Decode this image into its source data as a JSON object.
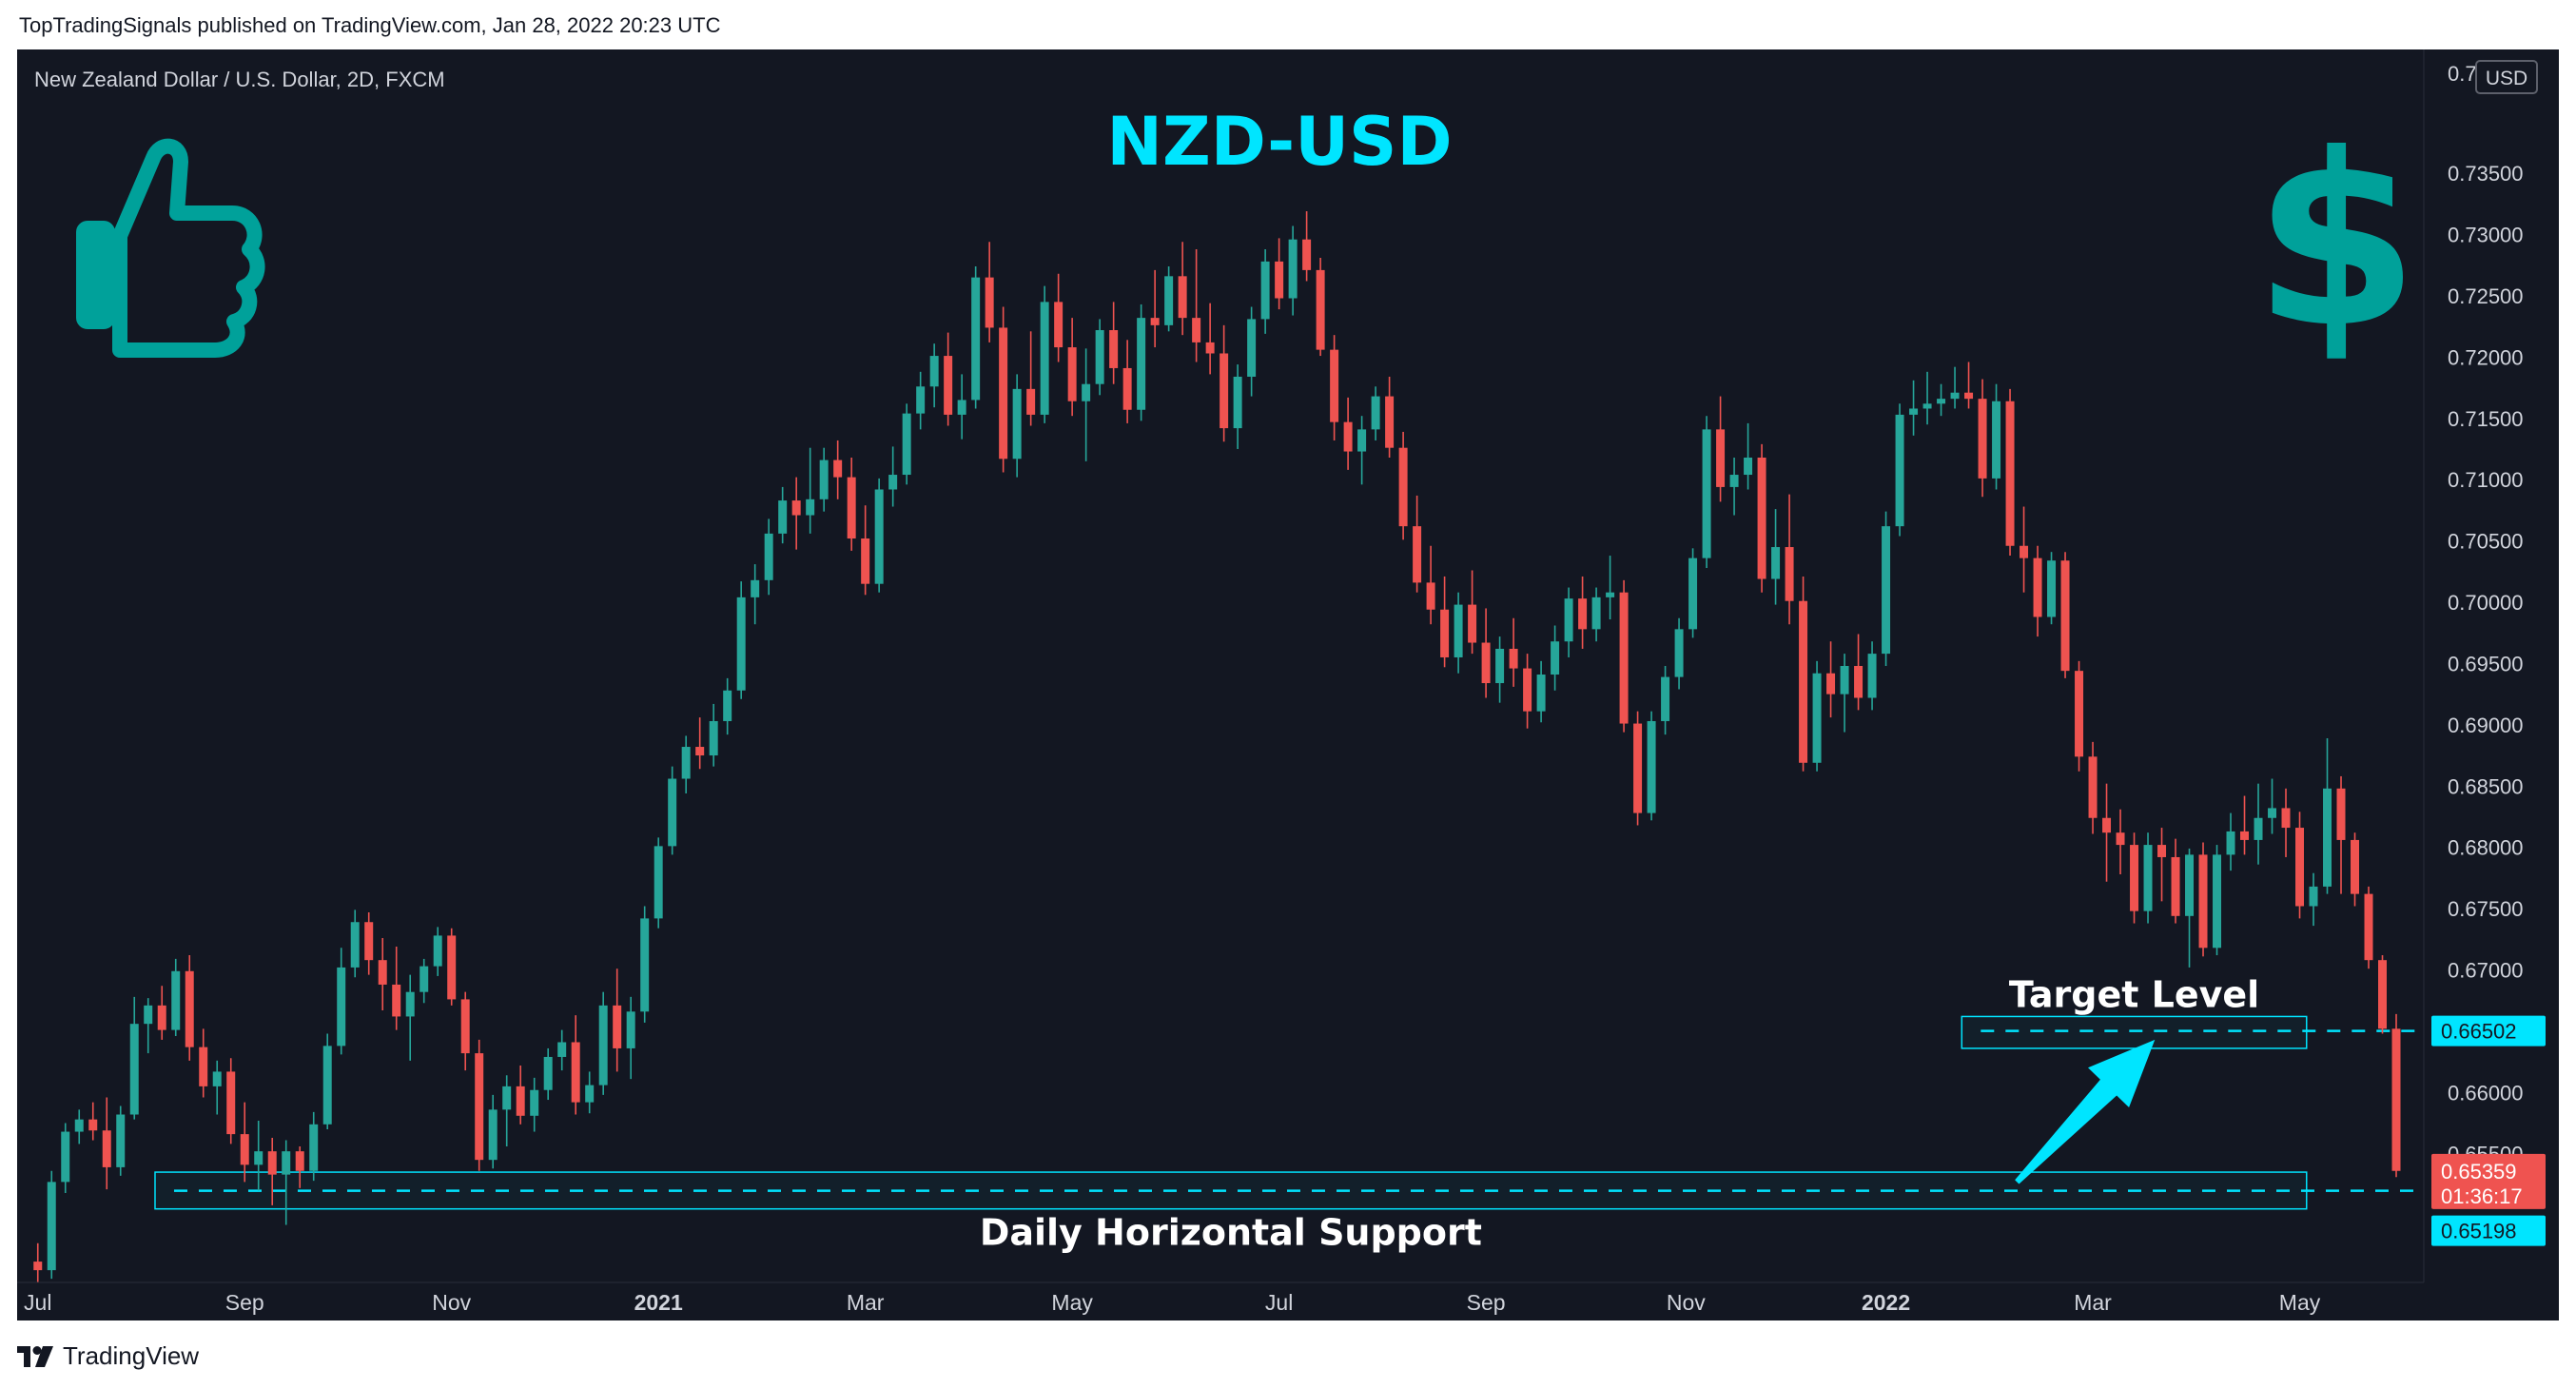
{
  "header": {
    "publish_text": "TopTradingSignals published on TradingView.com, Jan 28, 2022 20:23 UTC"
  },
  "footer": {
    "brand": "TradingView",
    "logo_icon": "tradingview-logo-icon"
  },
  "colors": {
    "background": "#131722",
    "up": "#26a69a",
    "down": "#ef5350",
    "accent": "#00e5ff",
    "icon_teal": "#00a19a",
    "text": "#d1d4dc"
  },
  "chart_data": {
    "type": "candlestick",
    "symbol_label": "New Zealand Dollar / U.S. Dollar, 2D, FXCM",
    "title": "NZD-USD",
    "currency_button": "USD",
    "y_top_label": "0.7",
    "ylim": [
      0.6445,
      0.7451
    ],
    "xlim": [
      -1.5,
      173.0
    ],
    "y_ticks": [
      0.735,
      0.73,
      0.725,
      0.72,
      0.715,
      0.71,
      0.705,
      0.7,
      0.695,
      0.69,
      0.685,
      0.68,
      0.675,
      0.67,
      0.66,
      0.655
    ],
    "x_tick_labels": [
      {
        "label": "Jul",
        "x": 0
      },
      {
        "label": "Sep",
        "x": 15
      },
      {
        "label": "Nov",
        "x": 30
      },
      {
        "label": "2021",
        "x": 45
      },
      {
        "label": "Mar",
        "x": 60
      },
      {
        "label": "May",
        "x": 75
      },
      {
        "label": "Jul",
        "x": 90
      },
      {
        "label": "Sep",
        "x": 105
      },
      {
        "label": "Nov",
        "x": 119.5
      },
      {
        "label": "2022",
        "x": 134
      },
      {
        "label": "Mar",
        "x": 149
      },
      {
        "label": "May",
        "x": 164
      }
    ],
    "levels": [
      {
        "name": "target-level",
        "label": "Target Level",
        "value": 0.66502,
        "price_label": "0.66502",
        "zone": [
          0.6636,
          0.6662
        ],
        "x_start": 139.5,
        "x_end": 164.5
      },
      {
        "name": "support-level",
        "label": "Daily Horizontal Support",
        "value": 0.65198,
        "price_label": "0.65198",
        "zone": [
          0.6505,
          0.6535
        ],
        "x_start": 8.5,
        "x_end": 164.5
      }
    ],
    "last_price": {
      "value": 0.65359,
      "label": "0.65359",
      "countdown": "01:36:17"
    },
    "arrow": {
      "from": [
        143.5,
        0.6527
      ],
      "to": [
        153.5,
        0.6643
      ]
    },
    "candles": [
      {
        "o": 0.6462,
        "h": 0.6477,
        "l": 0.6445,
        "c": 0.6455
      },
      {
        "o": 0.6455,
        "h": 0.6536,
        "l": 0.6448,
        "c": 0.6527
      },
      {
        "o": 0.6527,
        "h": 0.6575,
        "l": 0.6518,
        "c": 0.6568
      },
      {
        "o": 0.6568,
        "h": 0.6586,
        "l": 0.6558,
        "c": 0.6578
      },
      {
        "o": 0.6578,
        "h": 0.6592,
        "l": 0.6561,
        "c": 0.6569
      },
      {
        "o": 0.6569,
        "h": 0.6596,
        "l": 0.6521,
        "c": 0.6539
      },
      {
        "o": 0.6539,
        "h": 0.6589,
        "l": 0.6532,
        "c": 0.6582
      },
      {
        "o": 0.6582,
        "h": 0.6678,
        "l": 0.6578,
        "c": 0.6656
      },
      {
        "o": 0.6656,
        "h": 0.6677,
        "l": 0.6632,
        "c": 0.6671
      },
      {
        "o": 0.6671,
        "h": 0.6687,
        "l": 0.6643,
        "c": 0.6651
      },
      {
        "o": 0.6651,
        "h": 0.6709,
        "l": 0.6646,
        "c": 0.6699
      },
      {
        "o": 0.6699,
        "h": 0.6712,
        "l": 0.6626,
        "c": 0.6637
      },
      {
        "o": 0.6637,
        "h": 0.6652,
        "l": 0.6596,
        "c": 0.6605
      },
      {
        "o": 0.6605,
        "h": 0.6626,
        "l": 0.6582,
        "c": 0.6617
      },
      {
        "o": 0.6617,
        "h": 0.6628,
        "l": 0.6558,
        "c": 0.6566
      },
      {
        "o": 0.6566,
        "h": 0.6592,
        "l": 0.6527,
        "c": 0.6541
      },
      {
        "o": 0.6541,
        "h": 0.6577,
        "l": 0.652,
        "c": 0.6552
      },
      {
        "o": 0.6552,
        "h": 0.6563,
        "l": 0.6508,
        "c": 0.6533
      },
      {
        "o": 0.6533,
        "h": 0.6561,
        "l": 0.6492,
        "c": 0.6552
      },
      {
        "o": 0.6552,
        "h": 0.6556,
        "l": 0.6522,
        "c": 0.6536
      },
      {
        "o": 0.6536,
        "h": 0.6584,
        "l": 0.6528,
        "c": 0.6574
      },
      {
        "o": 0.6574,
        "h": 0.6648,
        "l": 0.657,
        "c": 0.6638
      },
      {
        "o": 0.6638,
        "h": 0.6718,
        "l": 0.6631,
        "c": 0.6702
      },
      {
        "o": 0.6702,
        "h": 0.6749,
        "l": 0.6694,
        "c": 0.6739
      },
      {
        "o": 0.6739,
        "h": 0.6747,
        "l": 0.6696,
        "c": 0.6708
      },
      {
        "o": 0.6708,
        "h": 0.6726,
        "l": 0.6667,
        "c": 0.6688
      },
      {
        "o": 0.6688,
        "h": 0.6719,
        "l": 0.6651,
        "c": 0.6662
      },
      {
        "o": 0.6662,
        "h": 0.6696,
        "l": 0.6626,
        "c": 0.6682
      },
      {
        "o": 0.6682,
        "h": 0.6709,
        "l": 0.6673,
        "c": 0.6703
      },
      {
        "o": 0.6703,
        "h": 0.6735,
        "l": 0.6695,
        "c": 0.6728
      },
      {
        "o": 0.6728,
        "h": 0.6734,
        "l": 0.6671,
        "c": 0.6676
      },
      {
        "o": 0.6676,
        "h": 0.6682,
        "l": 0.6618,
        "c": 0.6632
      },
      {
        "o": 0.6632,
        "h": 0.6643,
        "l": 0.6536,
        "c": 0.6545
      },
      {
        "o": 0.6545,
        "h": 0.6598,
        "l": 0.6538,
        "c": 0.6586
      },
      {
        "o": 0.6586,
        "h": 0.6614,
        "l": 0.6556,
        "c": 0.6605
      },
      {
        "o": 0.6605,
        "h": 0.6622,
        "l": 0.6574,
        "c": 0.6581
      },
      {
        "o": 0.6581,
        "h": 0.6612,
        "l": 0.6568,
        "c": 0.6602
      },
      {
        "o": 0.6602,
        "h": 0.6636,
        "l": 0.6594,
        "c": 0.6629
      },
      {
        "o": 0.6629,
        "h": 0.6651,
        "l": 0.6618,
        "c": 0.6641
      },
      {
        "o": 0.6641,
        "h": 0.6663,
        "l": 0.6582,
        "c": 0.6592
      },
      {
        "o": 0.6592,
        "h": 0.6617,
        "l": 0.6583,
        "c": 0.6606
      },
      {
        "o": 0.6606,
        "h": 0.6682,
        "l": 0.6598,
        "c": 0.6671
      },
      {
        "o": 0.6671,
        "h": 0.6701,
        "l": 0.6617,
        "c": 0.6636
      },
      {
        "o": 0.6636,
        "h": 0.6678,
        "l": 0.6611,
        "c": 0.6666
      },
      {
        "o": 0.6666,
        "h": 0.6752,
        "l": 0.6657,
        "c": 0.6742
      },
      {
        "o": 0.6742,
        "h": 0.6808,
        "l": 0.6734,
        "c": 0.6801
      },
      {
        "o": 0.6801,
        "h": 0.6866,
        "l": 0.6794,
        "c": 0.6856
      },
      {
        "o": 0.6856,
        "h": 0.6891,
        "l": 0.6844,
        "c": 0.6882
      },
      {
        "o": 0.6882,
        "h": 0.6906,
        "l": 0.6864,
        "c": 0.6875
      },
      {
        "o": 0.6875,
        "h": 0.6917,
        "l": 0.6866,
        "c": 0.6903
      },
      {
        "o": 0.6903,
        "h": 0.6938,
        "l": 0.6892,
        "c": 0.6928
      },
      {
        "o": 0.6928,
        "h": 0.7017,
        "l": 0.6921,
        "c": 0.7004
      },
      {
        "o": 0.7004,
        "h": 0.7031,
        "l": 0.6982,
        "c": 0.7018
      },
      {
        "o": 0.7018,
        "h": 0.7068,
        "l": 0.7006,
        "c": 0.7056
      },
      {
        "o": 0.7056,
        "h": 0.7094,
        "l": 0.7048,
        "c": 0.7083
      },
      {
        "o": 0.7083,
        "h": 0.7102,
        "l": 0.7043,
        "c": 0.7071
      },
      {
        "o": 0.7071,
        "h": 0.7126,
        "l": 0.7056,
        "c": 0.7084
      },
      {
        "o": 0.7084,
        "h": 0.7126,
        "l": 0.7074,
        "c": 0.7116
      },
      {
        "o": 0.7116,
        "h": 0.7132,
        "l": 0.7084,
        "c": 0.7102
      },
      {
        "o": 0.7102,
        "h": 0.7118,
        "l": 0.7042,
        "c": 0.7052
      },
      {
        "o": 0.7052,
        "h": 0.7079,
        "l": 0.7006,
        "c": 0.7015
      },
      {
        "o": 0.7015,
        "h": 0.7101,
        "l": 0.7008,
        "c": 0.7092
      },
      {
        "o": 0.7092,
        "h": 0.7127,
        "l": 0.7078,
        "c": 0.7104
      },
      {
        "o": 0.7104,
        "h": 0.7162,
        "l": 0.7096,
        "c": 0.7154
      },
      {
        "o": 0.7154,
        "h": 0.7188,
        "l": 0.7141,
        "c": 0.7176
      },
      {
        "o": 0.7176,
        "h": 0.7211,
        "l": 0.7159,
        "c": 0.7201
      },
      {
        "o": 0.7201,
        "h": 0.722,
        "l": 0.7144,
        "c": 0.7153
      },
      {
        "o": 0.7153,
        "h": 0.7186,
        "l": 0.7133,
        "c": 0.7165
      },
      {
        "o": 0.7165,
        "h": 0.7274,
        "l": 0.7158,
        "c": 0.7265
      },
      {
        "o": 0.7265,
        "h": 0.7294,
        "l": 0.7212,
        "c": 0.7224
      },
      {
        "o": 0.7224,
        "h": 0.7241,
        "l": 0.7106,
        "c": 0.7117
      },
      {
        "o": 0.7117,
        "h": 0.7186,
        "l": 0.7102,
        "c": 0.7174
      },
      {
        "o": 0.7174,
        "h": 0.7221,
        "l": 0.7144,
        "c": 0.7153
      },
      {
        "o": 0.7153,
        "h": 0.7258,
        "l": 0.7146,
        "c": 0.7245
      },
      {
        "o": 0.7245,
        "h": 0.7268,
        "l": 0.7196,
        "c": 0.7208
      },
      {
        "o": 0.7208,
        "h": 0.7232,
        "l": 0.7152,
        "c": 0.7164
      },
      {
        "o": 0.7164,
        "h": 0.7207,
        "l": 0.7115,
        "c": 0.7178
      },
      {
        "o": 0.7178,
        "h": 0.7231,
        "l": 0.7169,
        "c": 0.7222
      },
      {
        "o": 0.7222,
        "h": 0.7245,
        "l": 0.7178,
        "c": 0.7191
      },
      {
        "o": 0.7191,
        "h": 0.7214,
        "l": 0.7146,
        "c": 0.7157
      },
      {
        "o": 0.7157,
        "h": 0.7243,
        "l": 0.7148,
        "c": 0.7232
      },
      {
        "o": 0.7232,
        "h": 0.7271,
        "l": 0.7208,
        "c": 0.7226
      },
      {
        "o": 0.7226,
        "h": 0.7274,
        "l": 0.7221,
        "c": 0.7266
      },
      {
        "o": 0.7266,
        "h": 0.7294,
        "l": 0.7218,
        "c": 0.7232
      },
      {
        "o": 0.7232,
        "h": 0.7288,
        "l": 0.7196,
        "c": 0.7212
      },
      {
        "o": 0.7212,
        "h": 0.7244,
        "l": 0.7186,
        "c": 0.7203
      },
      {
        "o": 0.7203,
        "h": 0.7226,
        "l": 0.7131,
        "c": 0.7142
      },
      {
        "o": 0.7142,
        "h": 0.7194,
        "l": 0.7125,
        "c": 0.7184
      },
      {
        "o": 0.7184,
        "h": 0.7241,
        "l": 0.7168,
        "c": 0.7231
      },
      {
        "o": 0.7231,
        "h": 0.7288,
        "l": 0.7219,
        "c": 0.7278
      },
      {
        "o": 0.7278,
        "h": 0.7297,
        "l": 0.7239,
        "c": 0.7248
      },
      {
        "o": 0.7248,
        "h": 0.7307,
        "l": 0.7234,
        "c": 0.7296
      },
      {
        "o": 0.7296,
        "h": 0.7319,
        "l": 0.7262,
        "c": 0.7271
      },
      {
        "o": 0.7271,
        "h": 0.7281,
        "l": 0.7201,
        "c": 0.7206
      },
      {
        "o": 0.7206,
        "h": 0.7218,
        "l": 0.7132,
        "c": 0.7147
      },
      {
        "o": 0.7147,
        "h": 0.7167,
        "l": 0.7108,
        "c": 0.7123
      },
      {
        "o": 0.7123,
        "h": 0.7152,
        "l": 0.7096,
        "c": 0.7141
      },
      {
        "o": 0.7141,
        "h": 0.7176,
        "l": 0.7132,
        "c": 0.7168
      },
      {
        "o": 0.7168,
        "h": 0.7184,
        "l": 0.7118,
        "c": 0.7126
      },
      {
        "o": 0.7126,
        "h": 0.7139,
        "l": 0.7051,
        "c": 0.7062
      },
      {
        "o": 0.7062,
        "h": 0.7087,
        "l": 0.7008,
        "c": 0.7016
      },
      {
        "o": 0.7016,
        "h": 0.7046,
        "l": 0.6982,
        "c": 0.6994
      },
      {
        "o": 0.6994,
        "h": 0.7021,
        "l": 0.6947,
        "c": 0.6955
      },
      {
        "o": 0.6955,
        "h": 0.7008,
        "l": 0.6942,
        "c": 0.6998
      },
      {
        "o": 0.6998,
        "h": 0.7026,
        "l": 0.6958,
        "c": 0.6967
      },
      {
        "o": 0.6967,
        "h": 0.6995,
        "l": 0.6922,
        "c": 0.6934
      },
      {
        "o": 0.6934,
        "h": 0.6972,
        "l": 0.6918,
        "c": 0.6962
      },
      {
        "o": 0.6962,
        "h": 0.6987,
        "l": 0.6931,
        "c": 0.6946
      },
      {
        "o": 0.6946,
        "h": 0.6958,
        "l": 0.6897,
        "c": 0.6911
      },
      {
        "o": 0.6911,
        "h": 0.6952,
        "l": 0.6902,
        "c": 0.6941
      },
      {
        "o": 0.6941,
        "h": 0.6981,
        "l": 0.6928,
        "c": 0.6968
      },
      {
        "o": 0.6968,
        "h": 0.7012,
        "l": 0.6955,
        "c": 0.7003
      },
      {
        "o": 0.7003,
        "h": 0.7021,
        "l": 0.6962,
        "c": 0.6978
      },
      {
        "o": 0.6978,
        "h": 0.7012,
        "l": 0.6968,
        "c": 0.7004
      },
      {
        "o": 0.7004,
        "h": 0.7038,
        "l": 0.6986,
        "c": 0.7008
      },
      {
        "o": 0.7008,
        "h": 0.7018,
        "l": 0.6894,
        "c": 0.6901
      },
      {
        "o": 0.6901,
        "h": 0.6911,
        "l": 0.6818,
        "c": 0.6828
      },
      {
        "o": 0.6828,
        "h": 0.6911,
        "l": 0.6822,
        "c": 0.6903
      },
      {
        "o": 0.6903,
        "h": 0.6948,
        "l": 0.6892,
        "c": 0.6939
      },
      {
        "o": 0.6939,
        "h": 0.6987,
        "l": 0.6929,
        "c": 0.6978
      },
      {
        "o": 0.6978,
        "h": 0.7044,
        "l": 0.6971,
        "c": 0.7036
      },
      {
        "o": 0.7036,
        "h": 0.7152,
        "l": 0.7028,
        "c": 0.7141
      },
      {
        "o": 0.7141,
        "h": 0.7168,
        "l": 0.7082,
        "c": 0.7094
      },
      {
        "o": 0.7094,
        "h": 0.7118,
        "l": 0.7071,
        "c": 0.7104
      },
      {
        "o": 0.7104,
        "h": 0.7146,
        "l": 0.7092,
        "c": 0.7118
      },
      {
        "o": 0.7118,
        "h": 0.7129,
        "l": 0.7008,
        "c": 0.7019
      },
      {
        "o": 0.7019,
        "h": 0.7076,
        "l": 0.6998,
        "c": 0.7045
      },
      {
        "o": 0.7045,
        "h": 0.7088,
        "l": 0.6982,
        "c": 0.7001
      },
      {
        "o": 0.7001,
        "h": 0.7021,
        "l": 0.6862,
        "c": 0.6869
      },
      {
        "o": 0.6869,
        "h": 0.6952,
        "l": 0.6862,
        "c": 0.6942
      },
      {
        "o": 0.6942,
        "h": 0.6968,
        "l": 0.6906,
        "c": 0.6925
      },
      {
        "o": 0.6925,
        "h": 0.6958,
        "l": 0.6894,
        "c": 0.6948
      },
      {
        "o": 0.6948,
        "h": 0.6974,
        "l": 0.6912,
        "c": 0.6922
      },
      {
        "o": 0.6922,
        "h": 0.6968,
        "l": 0.6912,
        "c": 0.6958
      },
      {
        "o": 0.6958,
        "h": 0.7074,
        "l": 0.6948,
        "c": 0.7062
      },
      {
        "o": 0.7062,
        "h": 0.7162,
        "l": 0.7054,
        "c": 0.7153
      },
      {
        "o": 0.7153,
        "h": 0.7181,
        "l": 0.7136,
        "c": 0.7158
      },
      {
        "o": 0.7158,
        "h": 0.7188,
        "l": 0.7145,
        "c": 0.7162
      },
      {
        "o": 0.7162,
        "h": 0.7178,
        "l": 0.7152,
        "c": 0.7166
      },
      {
        "o": 0.7166,
        "h": 0.7192,
        "l": 0.7158,
        "c": 0.7171
      },
      {
        "o": 0.7171,
        "h": 0.7196,
        "l": 0.7158,
        "c": 0.7166
      },
      {
        "o": 0.7166,
        "h": 0.7182,
        "l": 0.7086,
        "c": 0.7101
      },
      {
        "o": 0.7101,
        "h": 0.7178,
        "l": 0.7092,
        "c": 0.7164
      },
      {
        "o": 0.7164,
        "h": 0.7174,
        "l": 0.7038,
        "c": 0.7046
      },
      {
        "o": 0.7046,
        "h": 0.7078,
        "l": 0.7008,
        "c": 0.7036
      },
      {
        "o": 0.7036,
        "h": 0.7046,
        "l": 0.6972,
        "c": 0.6988
      },
      {
        "o": 0.6988,
        "h": 0.7041,
        "l": 0.6982,
        "c": 0.7034
      },
      {
        "o": 0.7034,
        "h": 0.7041,
        "l": 0.6938,
        "c": 0.6944
      },
      {
        "o": 0.6944,
        "h": 0.6952,
        "l": 0.6862,
        "c": 0.6874
      },
      {
        "o": 0.6874,
        "h": 0.6886,
        "l": 0.6811,
        "c": 0.6824
      },
      {
        "o": 0.6824,
        "h": 0.6852,
        "l": 0.6772,
        "c": 0.6812
      },
      {
        "o": 0.6812,
        "h": 0.6831,
        "l": 0.6778,
        "c": 0.6802
      },
      {
        "o": 0.6802,
        "h": 0.6812,
        "l": 0.6738,
        "c": 0.6748
      },
      {
        "o": 0.6748,
        "h": 0.6812,
        "l": 0.6738,
        "c": 0.6802
      },
      {
        "o": 0.6802,
        "h": 0.6816,
        "l": 0.6756,
        "c": 0.6792
      },
      {
        "o": 0.6792,
        "h": 0.6807,
        "l": 0.6738,
        "c": 0.6744
      },
      {
        "o": 0.6744,
        "h": 0.6799,
        "l": 0.6702,
        "c": 0.6794
      },
      {
        "o": 0.6794,
        "h": 0.6804,
        "l": 0.6711,
        "c": 0.6718
      },
      {
        "o": 0.6718,
        "h": 0.6802,
        "l": 0.6712,
        "c": 0.6794
      },
      {
        "o": 0.6794,
        "h": 0.6828,
        "l": 0.6781,
        "c": 0.6813
      },
      {
        "o": 0.6813,
        "h": 0.6842,
        "l": 0.6794,
        "c": 0.6806
      },
      {
        "o": 0.6806,
        "h": 0.6852,
        "l": 0.6786,
        "c": 0.6824
      },
      {
        "o": 0.6824,
        "h": 0.6856,
        "l": 0.6811,
        "c": 0.6832
      },
      {
        "o": 0.6832,
        "h": 0.6848,
        "l": 0.6792,
        "c": 0.6816
      },
      {
        "o": 0.6816,
        "h": 0.6829,
        "l": 0.6742,
        "c": 0.6752
      },
      {
        "o": 0.6752,
        "h": 0.6779,
        "l": 0.6736,
        "c": 0.6768
      },
      {
        "o": 0.6768,
        "h": 0.6889,
        "l": 0.6762,
        "c": 0.6848
      },
      {
        "o": 0.6848,
        "h": 0.6858,
        "l": 0.6762,
        "c": 0.6806
      },
      {
        "o": 0.6806,
        "h": 0.6812,
        "l": 0.6752,
        "c": 0.6762
      },
      {
        "o": 0.6762,
        "h": 0.6768,
        "l": 0.6701,
        "c": 0.6708
      },
      {
        "o": 0.6708,
        "h": 0.6712,
        "l": 0.6648,
        "c": 0.6652
      },
      {
        "o": 0.6652,
        "h": 0.6664,
        "l": 0.6531,
        "c": 0.6536
      }
    ]
  }
}
